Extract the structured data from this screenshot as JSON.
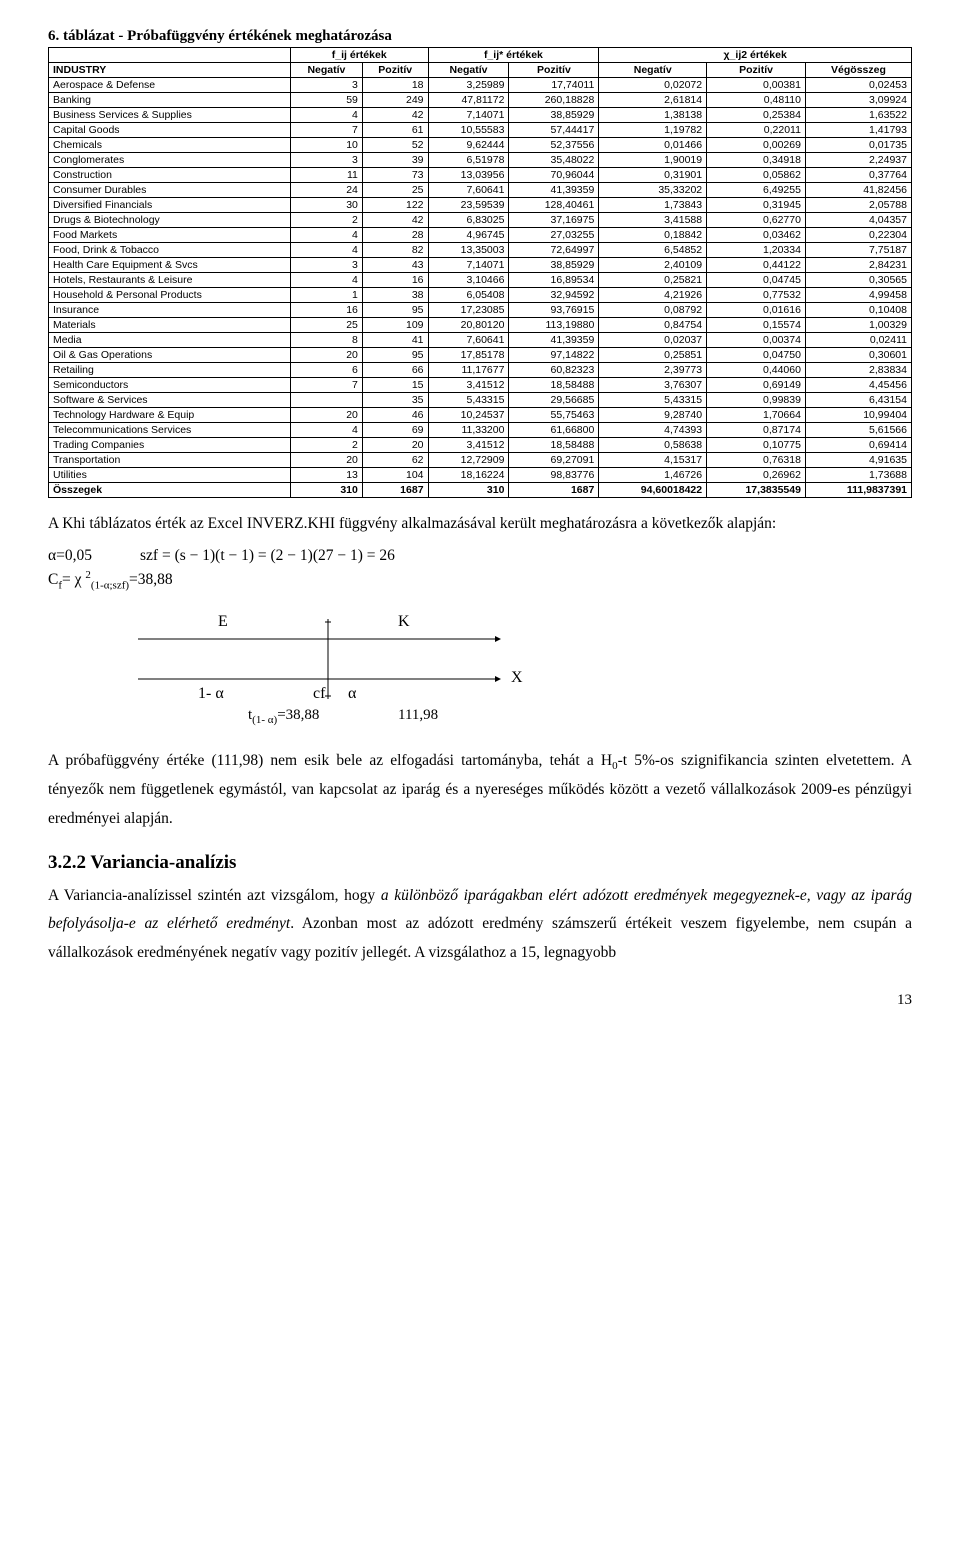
{
  "table_caption": "6. táblázat - Próbafüggvény értékének meghatározása",
  "header_groups": [
    "f_ij értékek",
    "f_ij* értékek",
    "χ_ij2 értékek"
  ],
  "header_cols": [
    "INDUSTRY",
    "Negatív",
    "Pozitív",
    "Negatív",
    "Pozitív",
    "Negatív",
    "Pozitív",
    "Végösszeg"
  ],
  "rows": [
    [
      "Aerospace & Defense",
      "3",
      "18",
      "3,25989",
      "17,74011",
      "0,02072",
      "0,00381",
      "0,02453"
    ],
    [
      "Banking",
      "59",
      "249",
      "47,81172",
      "260,18828",
      "2,61814",
      "0,48110",
      "3,09924"
    ],
    [
      "Business Services & Supplies",
      "4",
      "42",
      "7,14071",
      "38,85929",
      "1,38138",
      "0,25384",
      "1,63522"
    ],
    [
      "Capital Goods",
      "7",
      "61",
      "10,55583",
      "57,44417",
      "1,19782",
      "0,22011",
      "1,41793"
    ],
    [
      "Chemicals",
      "10",
      "52",
      "9,62444",
      "52,37556",
      "0,01466",
      "0,00269",
      "0,01735"
    ],
    [
      "Conglomerates",
      "3",
      "39",
      "6,51978",
      "35,48022",
      "1,90019",
      "0,34918",
      "2,24937"
    ],
    [
      "Construction",
      "11",
      "73",
      "13,03956",
      "70,96044",
      "0,31901",
      "0,05862",
      "0,37764"
    ],
    [
      "Consumer Durables",
      "24",
      "25",
      "7,60641",
      "41,39359",
      "35,33202",
      "6,49255",
      "41,82456"
    ],
    [
      "Diversified Financials",
      "30",
      "122",
      "23,59539",
      "128,40461",
      "1,73843",
      "0,31945",
      "2,05788"
    ],
    [
      "Drugs & Biotechnology",
      "2",
      "42",
      "6,83025",
      "37,16975",
      "3,41588",
      "0,62770",
      "4,04357"
    ],
    [
      "Food Markets",
      "4",
      "28",
      "4,96745",
      "27,03255",
      "0,18842",
      "0,03462",
      "0,22304"
    ],
    [
      "Food, Drink & Tobacco",
      "4",
      "82",
      "13,35003",
      "72,64997",
      "6,54852",
      "1,20334",
      "7,75187"
    ],
    [
      "Health Care Equipment & Svcs",
      "3",
      "43",
      "7,14071",
      "38,85929",
      "2,40109",
      "0,44122",
      "2,84231"
    ],
    [
      "Hotels, Restaurants & Leisure",
      "4",
      "16",
      "3,10466",
      "16,89534",
      "0,25821",
      "0,04745",
      "0,30565"
    ],
    [
      "Household & Personal Products",
      "1",
      "38",
      "6,05408",
      "32,94592",
      "4,21926",
      "0,77532",
      "4,99458"
    ],
    [
      "Insurance",
      "16",
      "95",
      "17,23085",
      "93,76915",
      "0,08792",
      "0,01616",
      "0,10408"
    ],
    [
      "Materials",
      "25",
      "109",
      "20,80120",
      "113,19880",
      "0,84754",
      "0,15574",
      "1,00329"
    ],
    [
      "Media",
      "8",
      "41",
      "7,60641",
      "41,39359",
      "0,02037",
      "0,00374",
      "0,02411"
    ],
    [
      "Oil & Gas Operations",
      "20",
      "95",
      "17,85178",
      "97,14822",
      "0,25851",
      "0,04750",
      "0,30601"
    ],
    [
      "Retailing",
      "6",
      "66",
      "11,17677",
      "60,82323",
      "2,39773",
      "0,44060",
      "2,83834"
    ],
    [
      "Semiconductors",
      "7",
      "15",
      "3,41512",
      "18,58488",
      "3,76307",
      "0,69149",
      "4,45456"
    ],
    [
      "Software & Services",
      "",
      "35",
      "5,43315",
      "29,56685",
      "5,43315",
      "0,99839",
      "6,43154"
    ],
    [
      "Technology Hardware & Equip",
      "20",
      "46",
      "10,24537",
      "55,75463",
      "9,28740",
      "1,70664",
      "10,99404"
    ],
    [
      "Telecommunications Services",
      "4",
      "69",
      "11,33200",
      "61,66800",
      "4,74393",
      "0,87174",
      "5,61566"
    ],
    [
      "Trading Companies",
      "2",
      "20",
      "3,41512",
      "18,58488",
      "0,58638",
      "0,10775",
      "0,69414"
    ],
    [
      "Transportation",
      "20",
      "62",
      "12,72909",
      "69,27091",
      "4,15317",
      "0,76318",
      "4,91635"
    ],
    [
      "Utilities",
      "13",
      "104",
      "18,16224",
      "98,83776",
      "1,46726",
      "0,26962",
      "1,73688"
    ]
  ],
  "totals": [
    "Összegek",
    "310",
    "1687",
    "310",
    "1687",
    "94,60018422",
    "17,3835549",
    "111,9837391"
  ],
  "para1_a": "A Khi táblázatos érték az Excel INVERZ.KHI függvény alkalmazásával került meghatározásra a következők alapján:",
  "alpha_label": "α=0,05",
  "szf_formula": "szf = (s − 1)(t − 1) = (2 − 1)(27 − 1) = 26",
  "cf_line": "C_f= χ²_(1-α;szf)=38,88",
  "diagram": {
    "E": "E",
    "K": "K",
    "X": "X",
    "one_minus_alpha": "1- α",
    "cf": "cf",
    "alpha": "α",
    "t_label": "t_(1- α)=38,88",
    "val": "111,98"
  },
  "para2": "A próbafüggvény értéke (111,98) nem esik bele az elfogadási tartományba, tehát a H₀-t 5%-os szignifikancia szinten elvetettem. A tényezők nem függetlenek egymástól, van kapcsolat az iparág és a nyereséges működés között a vezető vállalkozások 2009-es pénzügyi eredményei alapján.",
  "heading": "3.2.2 Variancia-analízis",
  "para3_a": "A Variancia-analízissel szintén azt vizsgálom, hogy ",
  "para3_i1": "a különböző iparágakban elért adózott eredmények megegyeznek-e, vagy az iparág befolyásolja-e az elérhető eredményt",
  "para3_b": ". Azonban most az adózott eredmény számszerű értékeit veszem figyelembe, nem csupán a vállalkozások eredményének negatív vagy pozitív jellegét. A vizsgálathoz a 15, legnagyobb",
  "pagenum": "13"
}
